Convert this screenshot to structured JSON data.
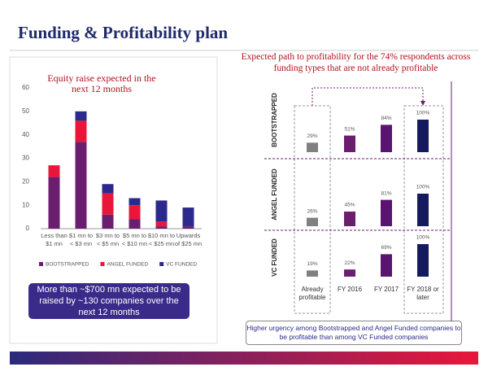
{
  "title": "Funding & Profitability plan",
  "note_left": "More than ~$700 mn expected to be raised by ~130 companies over the next 12 months",
  "note_right": "Higher urgency among Bootstrapped and Angel Funded companies to be profitable than among VC Funded companies",
  "chart_data": [
    {
      "type": "stacked",
      "title": "Equity raise expected in the next 12 months",
      "categories": [
        "Less than $1 mn",
        "$1 mn to < $3 mn",
        "$3 mn to < $5 mn",
        "$5 mn to < $10 mn",
        "$10 mn to < $25 mn",
        "Upwards of $25 mn"
      ],
      "series": [
        {
          "name": "BOOTSTRAPPED",
          "color": "#6b1d6f",
          "values": [
            22,
            37,
            6,
            4,
            1,
            1
          ]
        },
        {
          "name": "ANGEL FUNDED",
          "color": "#e8173a",
          "values": [
            5,
            9,
            9,
            6,
            2,
            0
          ]
        },
        {
          "name": "VC FUNDED",
          "color": "#2b2a8c",
          "values": [
            0,
            4,
            4,
            3,
            9,
            8
          ]
        }
      ],
      "ylim": [
        0,
        60
      ],
      "yticks": [
        0,
        10,
        20,
        30,
        40,
        50,
        60
      ],
      "grid": false,
      "legend": "bottom"
    },
    {
      "type": "multiples",
      "title": "Expected path to profitability for the 74% respondents across funding types that are not already profitable",
      "categories": [
        "Already profitable",
        "FY 2016",
        "FY 2017",
        "FY 2018 or later"
      ],
      "colors": [
        "#808080",
        "#6b1d6f",
        "#5a1470",
        "#141a5e"
      ],
      "series": [
        {
          "name": "BOOTSTRAPPED",
          "values": [
            29,
            51,
            84,
            100
          ],
          "value_labels": [
            "29%",
            "51%",
            "84%",
            "100%"
          ]
        },
        {
          "name": "ANGEL FUNDED",
          "values": [
            26,
            45,
            81,
            100
          ],
          "value_labels": [
            "26%",
            "45%",
            "81%",
            "100%"
          ]
        },
        {
          "name": "VC FUNDED",
          "values": [
            19,
            22,
            69,
            100
          ],
          "value_labels": [
            "19%",
            "22%",
            "69%",
            "100%"
          ]
        }
      ]
    }
  ]
}
